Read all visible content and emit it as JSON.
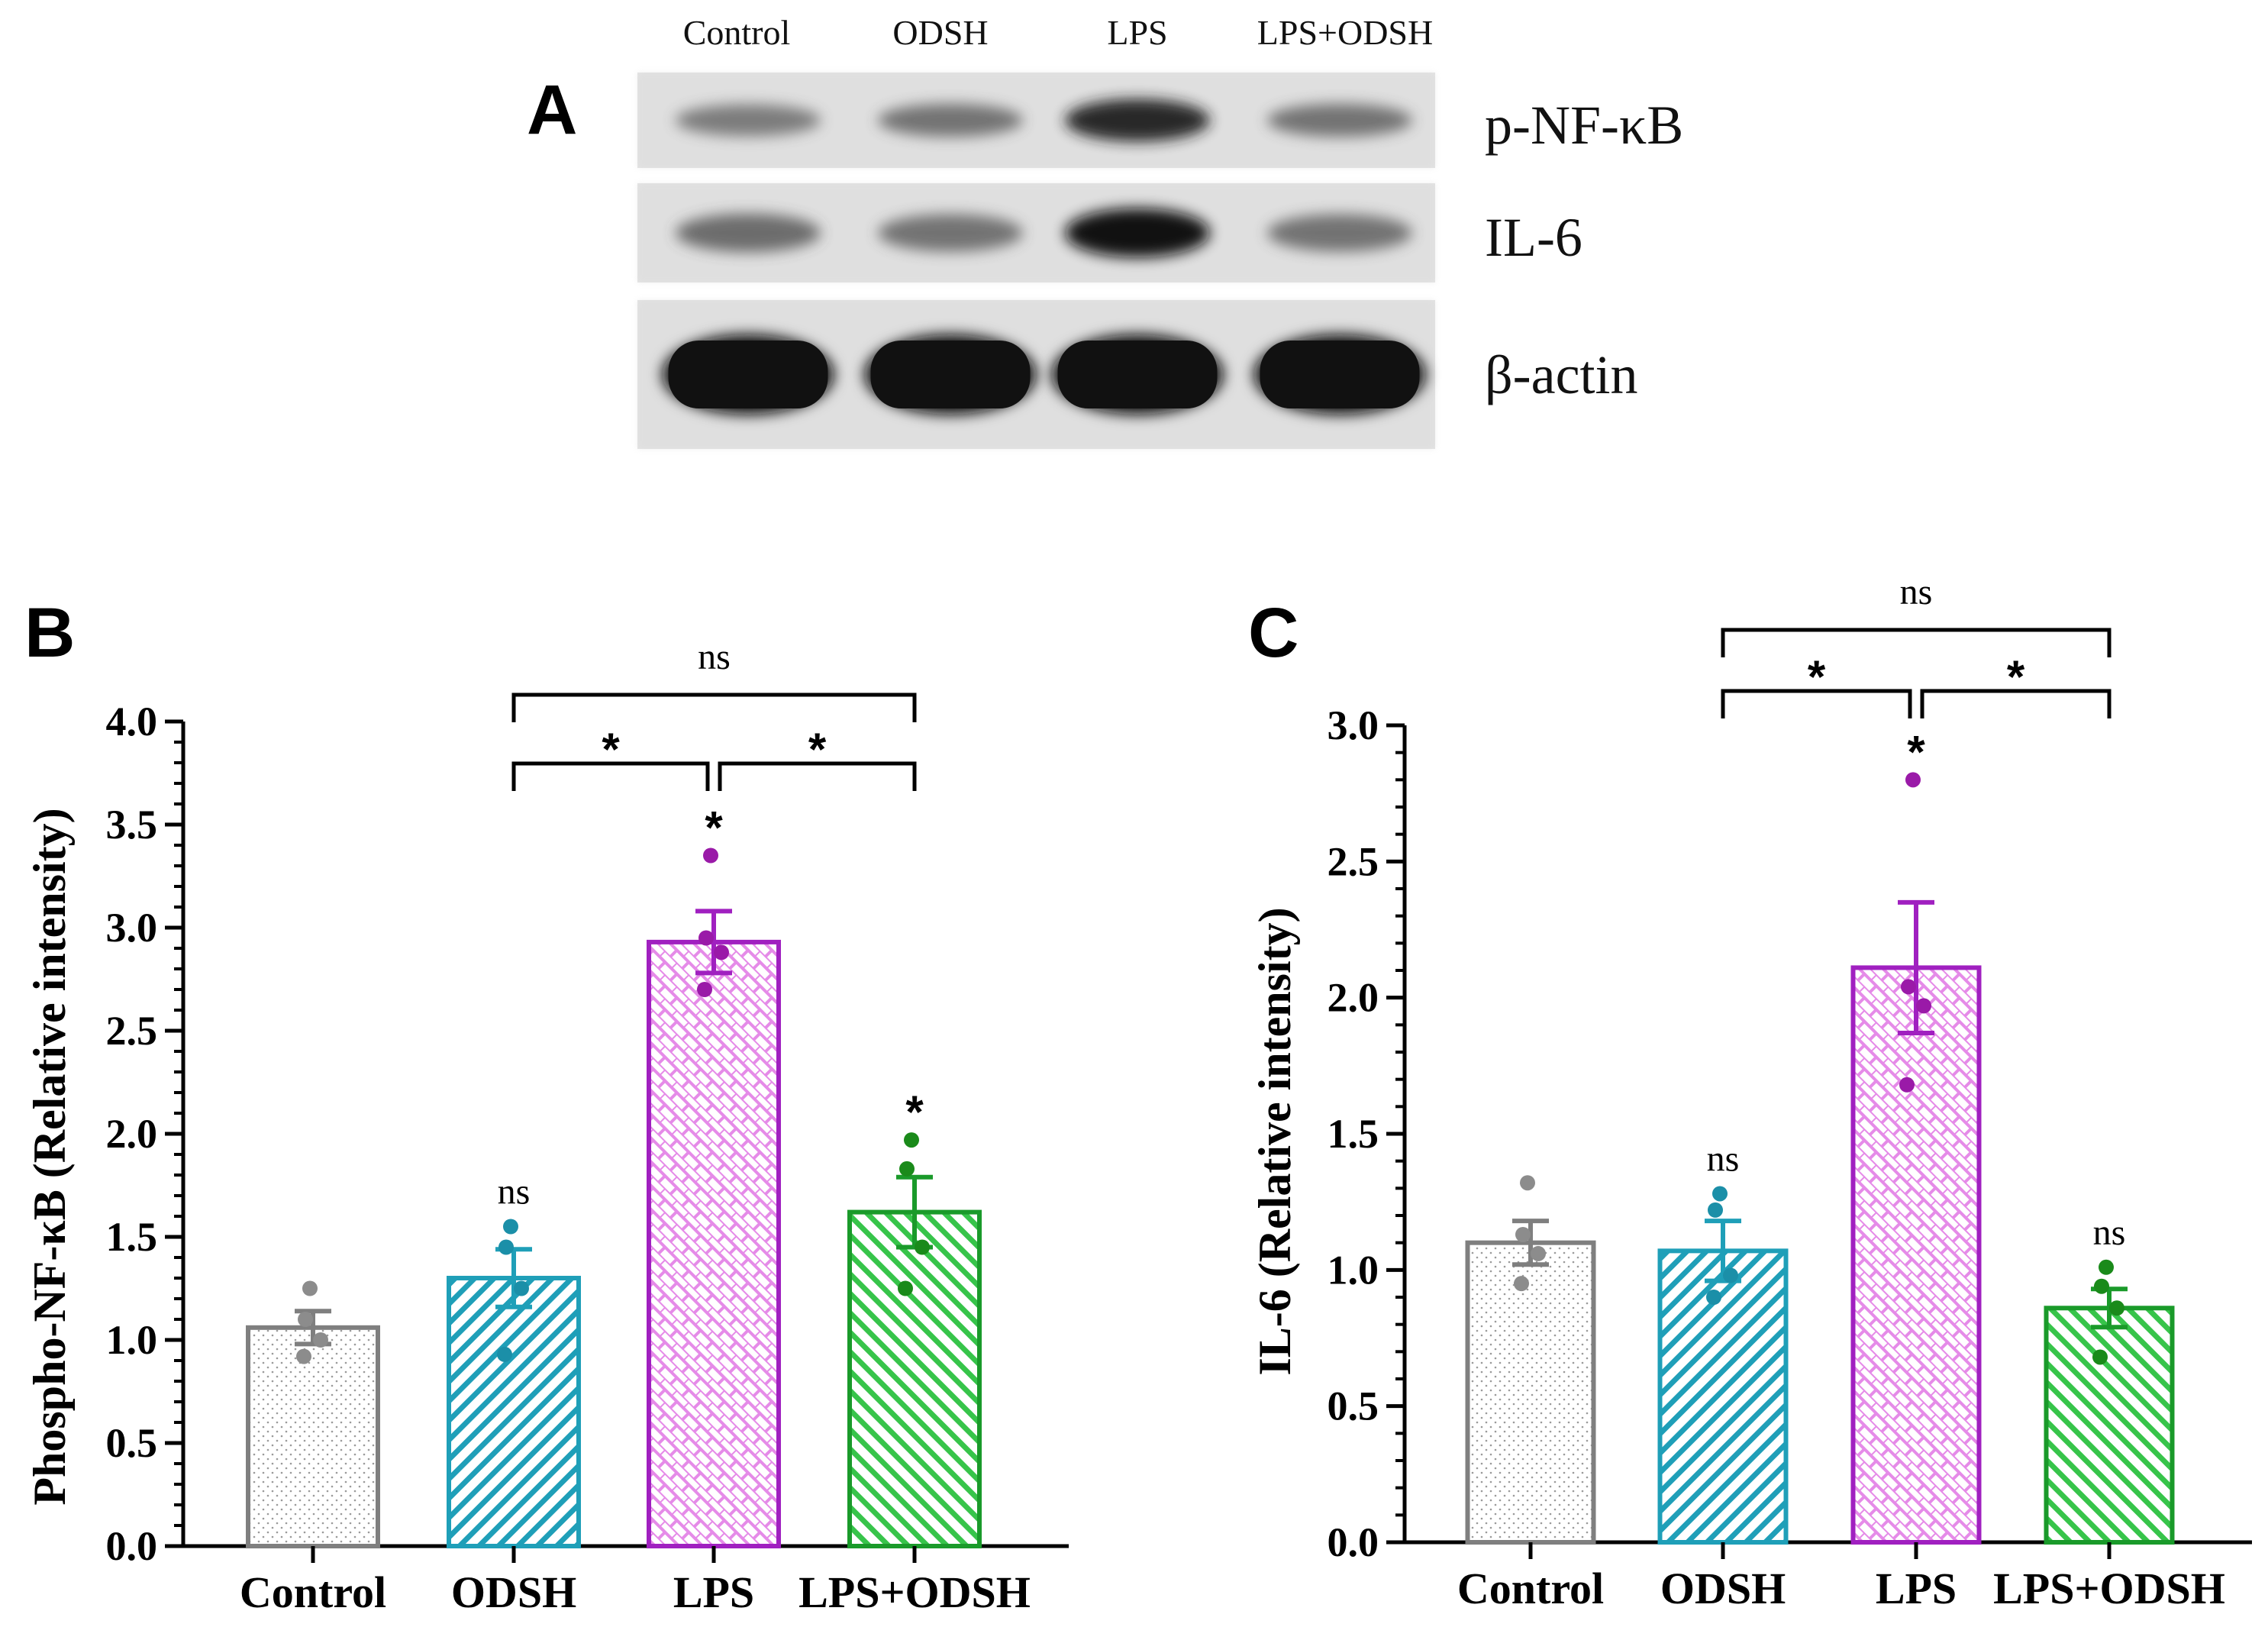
{
  "panel_a": {
    "letter": "A",
    "lanes": [
      "Control",
      "ODSH",
      "LPS",
      "LPS+ODSH"
    ],
    "rows": [
      {
        "label": "p-NF-κB",
        "intensities": [
          0.35,
          0.4,
          0.85,
          0.4
        ]
      },
      {
        "label": "IL-6",
        "intensities": [
          0.45,
          0.4,
          0.95,
          0.4
        ]
      },
      {
        "label": "β-actin",
        "intensities": [
          1.0,
          1.0,
          1.0,
          1.0
        ]
      }
    ]
  },
  "chart_data": [
    {
      "type": "bar",
      "panel": "B",
      "ylabel": "Phospho-NF-κB (Relative intensity)",
      "ylim": [
        0,
        4.0
      ],
      "yticks": [
        "0.0",
        "0.5",
        "1.0",
        "1.5",
        "2.0",
        "2.5",
        "3.0",
        "3.5",
        "4.0"
      ],
      "categories": [
        "Control",
        "ODSH",
        "LPS",
        "LPS+ODSH"
      ],
      "values": [
        1.06,
        1.3,
        2.93,
        1.62
      ],
      "errors": [
        0.08,
        0.14,
        0.15,
        0.17
      ],
      "points": [
        [
          1.25,
          1.1,
          1.0,
          0.92
        ],
        [
          1.55,
          1.45,
          1.25,
          0.93
        ],
        [
          3.35,
          2.95,
          2.88,
          2.7
        ],
        [
          1.97,
          1.83,
          1.45,
          1.25
        ]
      ],
      "marks": [
        "",
        "ns",
        "*",
        "*"
      ],
      "brackets": [
        {
          "from": 1,
          "to": 2,
          "label": "*"
        },
        {
          "from": 2,
          "to": 3,
          "label": "*"
        },
        {
          "from": 1,
          "to": 3,
          "label": "ns"
        }
      ]
    },
    {
      "type": "bar",
      "panel": "C",
      "ylabel": "IL-6 (Relative intensity)",
      "ylim": [
        0,
        3.0
      ],
      "yticks": [
        "0.0",
        "0.5",
        "1.0",
        "1.5",
        "2.0",
        "2.5",
        "3.0"
      ],
      "categories": [
        "Control",
        "ODSH",
        "LPS",
        "LPS+ODSH"
      ],
      "values": [
        1.1,
        1.07,
        2.11,
        0.86
      ],
      "errors": [
        0.08,
        0.11,
        0.24,
        0.07
      ],
      "points": [
        [
          1.32,
          1.13,
          1.06,
          0.95
        ],
        [
          1.28,
          1.22,
          0.98,
          0.9
        ],
        [
          2.8,
          2.04,
          1.97,
          1.68
        ],
        [
          1.01,
          0.94,
          0.86,
          0.68
        ]
      ],
      "marks": [
        "",
        "ns",
        "*",
        "ns"
      ],
      "brackets": [
        {
          "from": 1,
          "to": 2,
          "label": "*"
        },
        {
          "from": 2,
          "to": 3,
          "label": "*"
        },
        {
          "from": 1,
          "to": 3,
          "label": "ns"
        }
      ]
    }
  ],
  "colors": {
    "series": [
      "#7f7f7f",
      "#1f9fb8",
      "#a020c0",
      "#1a9a2a"
    ],
    "points": [
      "#8c8c8c",
      "#1b8fa8",
      "#9a1aa8",
      "#1a8a1a"
    ],
    "fills": [
      "#f2f2f2",
      "#e8f7fb",
      "#fbe6fb",
      "#e9fae9"
    ]
  }
}
